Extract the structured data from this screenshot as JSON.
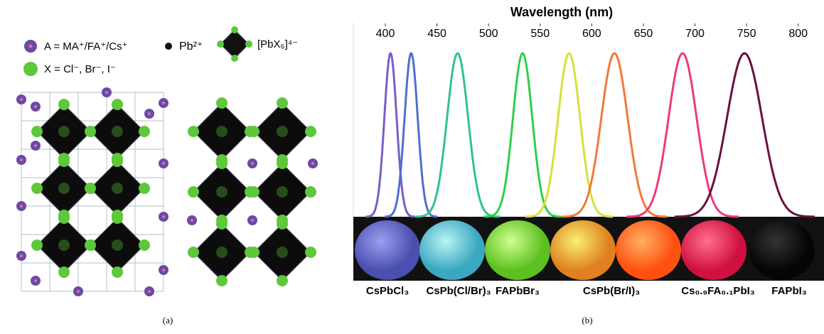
{
  "panel_a": {
    "legend": {
      "a_site": "A = MA⁺/FA⁺/Cs⁺",
      "pb": "Pb²⁺",
      "octahedron": "[PbX₆]⁴⁻",
      "x_site": "X = Cl⁻, Br⁻, I⁻"
    },
    "caption": "(a)"
  },
  "chart_data": {
    "type": "line",
    "xlabel": "Wavelength (nm)",
    "xlim": [
      369,
      825
    ],
    "xticks": [
      400,
      450,
      500,
      550,
      600,
      650,
      700,
      750,
      800
    ],
    "series": [
      {
        "color": "#7b5cc8",
        "peak": 405,
        "fwhm": 14
      },
      {
        "color": "#4f6fd0",
        "peak": 425,
        "fwhm": 15
      },
      {
        "color": "#2fc48a",
        "peak": 470,
        "fwhm": 24
      },
      {
        "color": "#2ecf4a",
        "peak": 533,
        "fwhm": 22
      },
      {
        "color": "#d6e03a",
        "peak": 578,
        "fwhm": 25
      },
      {
        "color": "#f07a3a",
        "peak": 622,
        "fwhm": 30
      },
      {
        "color": "#ee3a78",
        "peak": 688,
        "fwhm": 32
      },
      {
        "color": "#6a1040",
        "peak": 748,
        "fwhm": 40
      }
    ],
    "sample_labels": [
      "CsPbCl₃",
      "CsPb(Cl/Br)₃",
      "FAPbBr₃",
      "CsPb(Br/I)₃",
      "Cs₀.₉FA₀.₁PbI₃",
      "FAPbI₃"
    ],
    "caption": "(b)"
  }
}
